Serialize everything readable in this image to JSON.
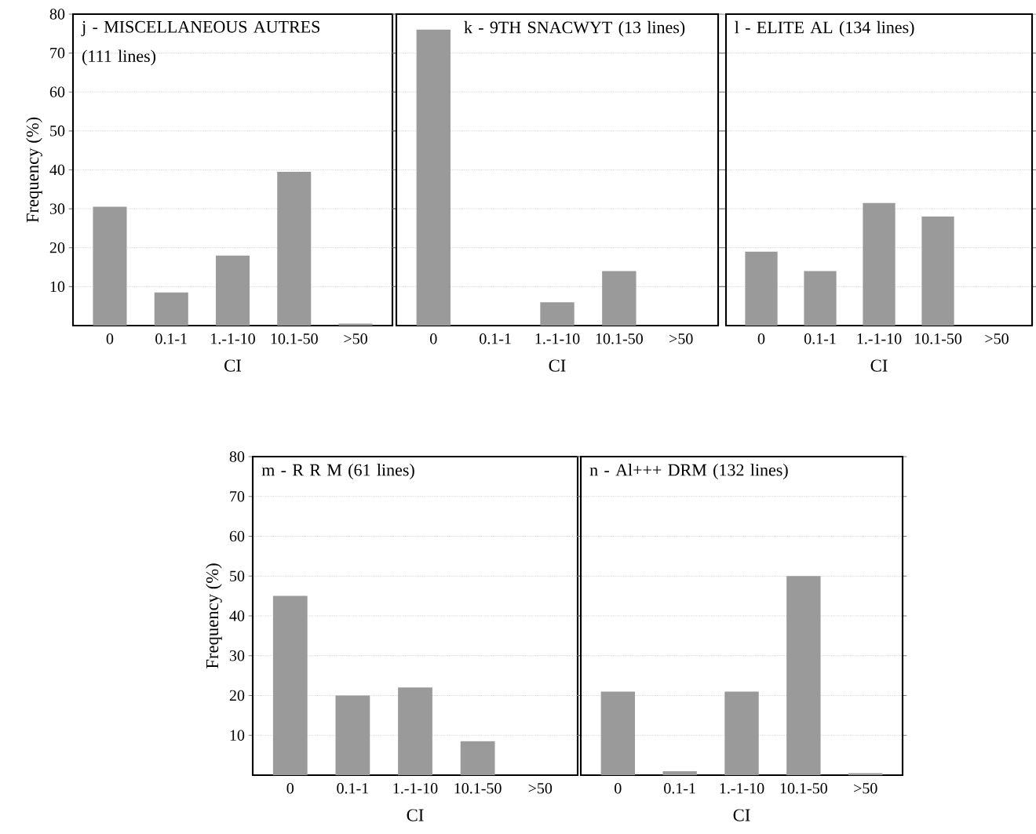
{
  "chart_data": [
    {
      "type": "bar",
      "title": "j - MISCELLANEOUS AUTRES (111 lines)",
      "xlabel": "CI",
      "ylabel": "Frequency (%)",
      "categories": [
        "0",
        "0.1-1",
        "1.-1-10",
        "10.1-50",
        ">50"
      ],
      "values": [
        30.5,
        8.5,
        18,
        39.5,
        0.5
      ],
      "color": "#9a9a9a",
      "ylim": [
        0,
        80
      ],
      "yticks": [
        10,
        20,
        30,
        40,
        50,
        60,
        70,
        80
      ],
      "grid": "y"
    },
    {
      "type": "bar",
      "title": "k - 9TH SNACWYT (13 lines)",
      "xlabel": "CI",
      "categories": [
        "0",
        "0.1-1",
        "1.-1-10",
        "10.1-50",
        ">50"
      ],
      "values": [
        76,
        0,
        6,
        14,
        0
      ],
      "color": "#9a9a9a",
      "ylim": [
        0,
        80
      ],
      "yticks": [
        10,
        20,
        30,
        40,
        50,
        60,
        70,
        80
      ],
      "grid": "y",
      "tick_labels": "x"
    },
    {
      "type": "bar",
      "title": "l - ELITE AL (134 lines)",
      "xlabel": "CI",
      "categories": [
        "0",
        "0.1-1",
        "1.-1-10",
        "10.1-50",
        ">50"
      ],
      "values": [
        19,
        14,
        31.5,
        28,
        0
      ],
      "color": "#9a9a9a",
      "ylim": [
        0,
        80
      ],
      "yticks": [
        10,
        20,
        30,
        40,
        50,
        60,
        70,
        80
      ],
      "grid": "y",
      "tick_labels": "x"
    },
    {
      "type": "bar",
      "title": "m - R R M (61 lines)",
      "xlabel": "CI",
      "ylabel": "Frequency (%)",
      "categories": [
        "0",
        "0.1-1",
        "1.-1-10",
        "10.1-50",
        ">50"
      ],
      "values": [
        45,
        20,
        22,
        8.5,
        0
      ],
      "color": "#9a9a9a",
      "ylim": [
        0,
        80
      ],
      "yticks": [
        10,
        20,
        30,
        40,
        50,
        60,
        70,
        80
      ],
      "grid": "y"
    },
    {
      "type": "bar",
      "title": "n - Al+++ DRM (132 lines)",
      "xlabel": "CI",
      "categories": [
        "0",
        "0.1-1",
        "1.-1-10",
        "10.1-50",
        ">50"
      ],
      "values": [
        21,
        1,
        21,
        50,
        0.5
      ],
      "color": "#9a9a9a",
      "ylim": [
        0,
        80
      ],
      "yticks": [
        10,
        20,
        30,
        40,
        50,
        60,
        70,
        80
      ],
      "grid": "y",
      "tick_labels": "x"
    }
  ]
}
